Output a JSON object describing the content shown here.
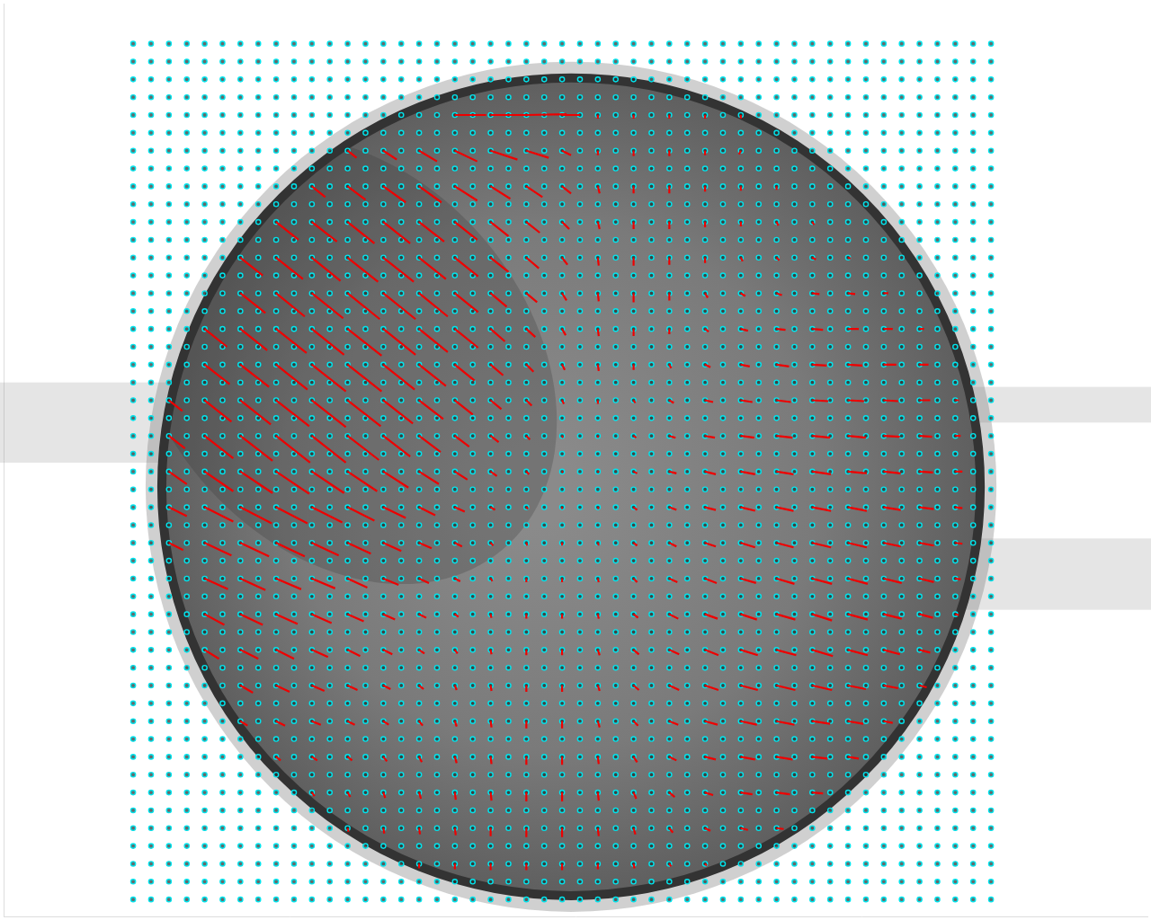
{
  "chart_data": {
    "type": "quiver",
    "xlim": [
      0,
      1280
    ],
    "ylim": [
      1024,
      0
    ],
    "grid": false,
    "tick_labels": false,
    "points": {
      "color": "#00e5ee",
      "marker": "circle",
      "x": [
        145,
        165,
        185,
        205,
        225,
        245,
        265,
        285,
        305,
        325,
        345,
        365,
        385,
        405,
        425,
        445,
        465,
        485,
        505,
        525,
        545,
        565,
        585,
        605,
        625,
        645,
        665,
        685,
        705,
        725,
        745,
        765,
        785,
        805,
        825,
        845,
        865,
        885,
        905,
        925,
        945,
        965,
        985,
        1005,
        1025,
        1045,
        1065,
        1085,
        1105
      ],
      "y": [
        45,
        65,
        85,
        105,
        125,
        145,
        165,
        185,
        205,
        225,
        245,
        265,
        285,
        305,
        325,
        345,
        365,
        385,
        405,
        425,
        445,
        465,
        485,
        505,
        525,
        545,
        565,
        585,
        605,
        625,
        645,
        665,
        685,
        705,
        725,
        745,
        765,
        785,
        805,
        825,
        845,
        865,
        885,
        905,
        925,
        945,
        965,
        985,
        1005
      ]
    },
    "vectors": {
      "color": "#ee0000",
      "line_style": "solid",
      "x": [
        145,
        185,
        225,
        265,
        305,
        345,
        385,
        425,
        465,
        505,
        545,
        585,
        625,
        665,
        705,
        745,
        785,
        825,
        865,
        905,
        945,
        985,
        1025,
        1065,
        1105
      ],
      "y": [
        45,
        85,
        125,
        165,
        205,
        245,
        285,
        325,
        365,
        405,
        445,
        485,
        525,
        565,
        605,
        645,
        685,
        725,
        765,
        805,
        845,
        885,
        925,
        965,
        1005
      ],
      "u": [
        [
          0,
          0,
          0,
          0,
          0,
          0,
          0,
          0,
          0,
          0,
          0,
          0,
          0,
          0,
          0,
          0,
          0,
          0,
          0,
          0,
          0,
          0,
          0,
          0,
          0
        ],
        [
          0,
          0,
          0,
          0,
          0,
          0,
          0,
          0,
          0,
          0,
          0,
          0,
          0,
          0,
          0,
          0,
          0,
          0,
          0,
          0,
          0,
          0,
          0,
          0,
          0
        ],
        [
          0,
          0,
          0,
          0,
          0,
          0,
          0,
          0,
          0,
          35,
          45,
          45,
          20,
          0,
          0,
          0,
          0,
          0,
          0,
          0,
          0,
          0,
          0,
          0,
          0
        ],
        [
          0,
          0,
          0,
          0,
          0,
          0,
          10,
          15,
          20,
          25,
          30,
          25,
          10,
          0,
          0,
          0,
          0,
          -2,
          0,
          0,
          0,
          0,
          0,
          0,
          0
        ],
        [
          0,
          0,
          0,
          0,
          0,
          15,
          20,
          25,
          25,
          25,
          22,
          18,
          10,
          2,
          0,
          0,
          0,
          0,
          0,
          0,
          0,
          0,
          0,
          0,
          0
        ],
        [
          0,
          0,
          0,
          0,
          25,
          28,
          30,
          30,
          28,
          25,
          20,
          15,
          8,
          2,
          0,
          0,
          0,
          0,
          2,
          2,
          0,
          0,
          0,
          0,
          0
        ],
        [
          0,
          0,
          0,
          25,
          30,
          32,
          34,
          34,
          30,
          26,
          20,
          14,
          6,
          1,
          0,
          0,
          0,
          2,
          3,
          4,
          3,
          0,
          0,
          0,
          0
        ],
        [
          0,
          0,
          0,
          28,
          32,
          35,
          36,
          36,
          32,
          26,
          18,
          12,
          5,
          1,
          0,
          0,
          3,
          5,
          6,
          8,
          8,
          5,
          0,
          0,
          0
        ],
        [
          0,
          0,
          25,
          30,
          34,
          36,
          38,
          36,
          32,
          26,
          16,
          10,
          4,
          1,
          0,
          0,
          4,
          8,
          10,
          12,
          12,
          10,
          5,
          0,
          0
        ],
        [
          0,
          0,
          28,
          32,
          35,
          38,
          38,
          35,
          30,
          22,
          14,
          8,
          3,
          1,
          0,
          2,
          6,
          10,
          14,
          16,
          16,
          14,
          10,
          0,
          0
        ],
        [
          0,
          15,
          30,
          34,
          37,
          38,
          37,
          33,
          27,
          20,
          12,
          6,
          2,
          0,
          2,
          5,
          9,
          13,
          16,
          18,
          18,
          16,
          12,
          4,
          0
        ],
        [
          0,
          18,
          32,
          36,
          38,
          38,
          35,
          30,
          24,
          16,
          9,
          4,
          1,
          0,
          3,
          7,
          11,
          15,
          18,
          20,
          20,
          18,
          14,
          6,
          0
        ],
        [
          0,
          20,
          32,
          36,
          37,
          36,
          33,
          28,
          22,
          14,
          7,
          3,
          1,
          1,
          4,
          8,
          12,
          16,
          19,
          21,
          21,
          19,
          15,
          8,
          0
        ],
        [
          0,
          20,
          32,
          35,
          35,
          34,
          30,
          25,
          18,
          11,
          5,
          2,
          0,
          1,
          4,
          8,
          12,
          16,
          19,
          21,
          21,
          19,
          16,
          8,
          0
        ],
        [
          0,
          16,
          30,
          32,
          32,
          30,
          26,
          20,
          14,
          8,
          3,
          1,
          0,
          1,
          4,
          8,
          12,
          16,
          19,
          21,
          21,
          19,
          16,
          8,
          0
        ],
        [
          0,
          0,
          26,
          28,
          28,
          26,
          22,
          17,
          11,
          6,
          2,
          0,
          0,
          1,
          4,
          9,
          13,
          17,
          20,
          22,
          22,
          20,
          16,
          6,
          0
        ],
        [
          0,
          0,
          22,
          25,
          24,
          22,
          18,
          13,
          8,
          4,
          1,
          0,
          0,
          1,
          5,
          10,
          14,
          18,
          21,
          22,
          22,
          20,
          15,
          4,
          0
        ],
        [
          0,
          0,
          16,
          20,
          20,
          18,
          14,
          10,
          6,
          3,
          1,
          0,
          0,
          2,
          6,
          11,
          15,
          19,
          22,
          23,
          22,
          18,
          12,
          0,
          0
        ],
        [
          0,
          0,
          0,
          14,
          15,
          14,
          11,
          8,
          5,
          2,
          1,
          0,
          0,
          2,
          6,
          11,
          15,
          19,
          21,
          22,
          20,
          16,
          8,
          0,
          0
        ],
        [
          0,
          0,
          0,
          8,
          10,
          10,
          8,
          6,
          4,
          2,
          1,
          0,
          0,
          2,
          5,
          10,
          14,
          18,
          20,
          20,
          17,
          10,
          0,
          0,
          0
        ],
        [
          0,
          0,
          0,
          0,
          5,
          6,
          5,
          4,
          3,
          2,
          1,
          0,
          0,
          1,
          4,
          8,
          12,
          16,
          18,
          17,
          12,
          0,
          0,
          0,
          0
        ],
        [
          0,
          0,
          0,
          0,
          0,
          3,
          3,
          2,
          2,
          1,
          1,
          0,
          0,
          1,
          3,
          6,
          9,
          13,
          15,
          12,
          0,
          0,
          0,
          0,
          0
        ],
        [
          0,
          0,
          0,
          0,
          0,
          0,
          1,
          1,
          1,
          1,
          0,
          0,
          0,
          1,
          2,
          4,
          6,
          8,
          8,
          0,
          0,
          0,
          0,
          0,
          0
        ],
        [
          0,
          0,
          0,
          0,
          0,
          0,
          0,
          0,
          0,
          0,
          0,
          0,
          0,
          0,
          1,
          2,
          2,
          0,
          0,
          0,
          0,
          0,
          0,
          0,
          0
        ],
        [
          0,
          0,
          0,
          0,
          0,
          0,
          0,
          0,
          0,
          0,
          0,
          0,
          0,
          0,
          0,
          0,
          0,
          0,
          0,
          0,
          0,
          0,
          0,
          0,
          0
        ]
      ],
      "v": [
        [
          0,
          0,
          0,
          0,
          0,
          0,
          0,
          0,
          0,
          0,
          0,
          0,
          0,
          0,
          0,
          0,
          0,
          0,
          0,
          0,
          0,
          0,
          0,
          0,
          0
        ],
        [
          0,
          0,
          0,
          0,
          0,
          0,
          0,
          0,
          0,
          0,
          0,
          0,
          0,
          0,
          0,
          0,
          0,
          0,
          0,
          0,
          0,
          0,
          0,
          0,
          0
        ],
        [
          0,
          0,
          0,
          0,
          0,
          0,
          0,
          0,
          0,
          0,
          0,
          -1,
          0,
          4,
          4,
          4,
          4,
          4,
          0,
          0,
          0,
          0,
          0,
          0,
          0
        ],
        [
          0,
          0,
          0,
          0,
          0,
          0,
          8,
          10,
          12,
          12,
          10,
          8,
          5,
          5,
          6,
          6,
          5,
          4,
          0,
          0,
          0,
          0,
          0,
          0,
          0
        ],
        [
          0,
          0,
          0,
          0,
          0,
          12,
          15,
          18,
          18,
          16,
          14,
          12,
          8,
          8,
          8,
          8,
          6,
          5,
          4,
          0,
          0,
          0,
          0,
          0,
          0
        ],
        [
          0,
          0,
          0,
          0,
          20,
          22,
          24,
          24,
          22,
          20,
          16,
          12,
          8,
          8,
          8,
          8,
          6,
          5,
          4,
          3,
          0,
          0,
          0,
          0,
          0
        ],
        [
          0,
          0,
          0,
          20,
          24,
          26,
          27,
          27,
          24,
          21,
          16,
          12,
          8,
          9,
          9,
          8,
          6,
          4,
          3,
          2,
          1,
          0,
          0,
          0,
          0
        ],
        [
          0,
          0,
          0,
          22,
          26,
          28,
          29,
          29,
          26,
          21,
          15,
          10,
          8,
          9,
          10,
          8,
          5,
          3,
          2,
          1,
          1,
          0,
          0,
          0,
          0
        ],
        [
          0,
          0,
          20,
          24,
          27,
          29,
          30,
          29,
          26,
          21,
          14,
          9,
          7,
          8,
          8,
          6,
          3,
          2,
          1,
          1,
          0,
          0,
          0,
          0,
          0
        ],
        [
          0,
          0,
          22,
          25,
          28,
          30,
          30,
          28,
          24,
          18,
          12,
          8,
          6,
          7,
          6,
          4,
          3,
          2,
          2,
          1,
          1,
          0,
          0,
          0,
          0
        ],
        [
          0,
          12,
          24,
          27,
          29,
          30,
          29,
          26,
          21,
          16,
          10,
          6,
          4,
          4,
          3,
          3,
          2,
          2,
          2,
          1,
          1,
          1,
          0,
          0,
          0
        ],
        [
          0,
          14,
          25,
          28,
          30,
          30,
          27,
          23,
          18,
          12,
          7,
          4,
          2,
          2,
          2,
          2,
          2,
          2,
          2,
          2,
          2,
          1,
          1,
          0,
          0
        ],
        [
          0,
          14,
          22,
          24,
          25,
          24,
          22,
          18,
          14,
          9,
          5,
          3,
          1,
          1,
          2,
          2,
          3,
          3,
          3,
          3,
          2,
          2,
          1,
          0,
          0
        ],
        [
          0,
          10,
          16,
          18,
          18,
          17,
          15,
          12,
          9,
          5,
          3,
          2,
          2,
          2,
          3,
          3,
          3,
          4,
          4,
          4,
          4,
          3,
          2,
          1,
          0
        ],
        [
          0,
          8,
          14,
          15,
          15,
          14,
          12,
          9,
          6,
          4,
          3,
          3,
          3,
          3,
          3,
          4,
          4,
          5,
          5,
          5,
          5,
          4,
          3,
          1,
          0
        ],
        [
          0,
          0,
          12,
          13,
          12,
          11,
          10,
          7,
          5,
          3,
          3,
          4,
          4,
          4,
          4,
          4,
          5,
          5,
          6,
          6,
          6,
          5,
          4,
          1,
          0
        ],
        [
          0,
          0,
          12,
          12,
          11,
          10,
          8,
          6,
          4,
          3,
          4,
          5,
          5,
          5,
          4,
          5,
          5,
          6,
          6,
          7,
          6,
          5,
          4,
          1,
          0
        ],
        [
          0,
          0,
          10,
          10,
          10,
          8,
          7,
          5,
          4,
          4,
          5,
          6,
          6,
          6,
          5,
          5,
          6,
          6,
          6,
          7,
          6,
          5,
          3,
          0,
          0
        ],
        [
          0,
          0,
          0,
          8,
          7,
          6,
          5,
          4,
          4,
          5,
          6,
          7,
          7,
          6,
          5,
          5,
          5,
          5,
          5,
          5,
          4,
          3,
          2,
          0,
          0
        ],
        [
          0,
          0,
          0,
          5,
          5,
          4,
          4,
          4,
          5,
          6,
          7,
          8,
          8,
          7,
          5,
          4,
          4,
          4,
          4,
          3,
          3,
          2,
          0,
          0,
          0
        ],
        [
          0,
          0,
          0,
          0,
          4,
          4,
          4,
          5,
          6,
          7,
          8,
          9,
          9,
          8,
          6,
          4,
          3,
          3,
          3,
          2,
          2,
          0,
          0,
          0,
          0
        ],
        [
          0,
          0,
          0,
          0,
          0,
          4,
          5,
          6,
          7,
          8,
          9,
          10,
          10,
          9,
          7,
          5,
          3,
          2,
          2,
          1,
          0,
          0,
          0,
          0,
          0
        ],
        [
          0,
          0,
          0,
          0,
          0,
          0,
          4,
          6,
          7,
          8,
          9,
          10,
          10,
          9,
          7,
          5,
          3,
          2,
          1,
          0,
          0,
          0,
          0,
          0,
          0
        ],
        [
          0,
          0,
          0,
          0,
          0,
          0,
          0,
          0,
          5,
          6,
          7,
          7,
          7,
          6,
          5,
          3,
          2,
          0,
          0,
          0,
          0,
          0,
          0,
          0,
          0
        ],
        [
          0,
          0,
          0,
          0,
          0,
          0,
          0,
          0,
          0,
          0,
          0,
          0,
          0,
          0,
          0,
          0,
          0,
          0,
          0,
          0,
          0,
          0,
          0,
          0,
          0
        ]
      ]
    }
  }
}
